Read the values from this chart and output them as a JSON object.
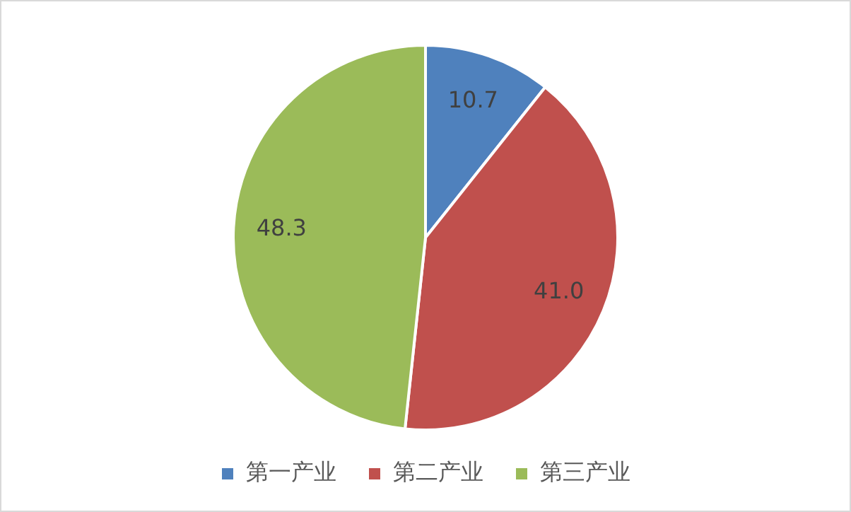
{
  "chart_data": {
    "type": "pie",
    "categories": [
      "第一产业",
      "第二产业",
      "第三产业"
    ],
    "values": [
      10.7,
      41.0,
      48.3
    ],
    "value_labels": [
      "10.7",
      "41.0",
      "48.3"
    ],
    "colors": [
      "#4f81bd",
      "#c0504d",
      "#9bbb59"
    ],
    "legend": "bottom"
  }
}
